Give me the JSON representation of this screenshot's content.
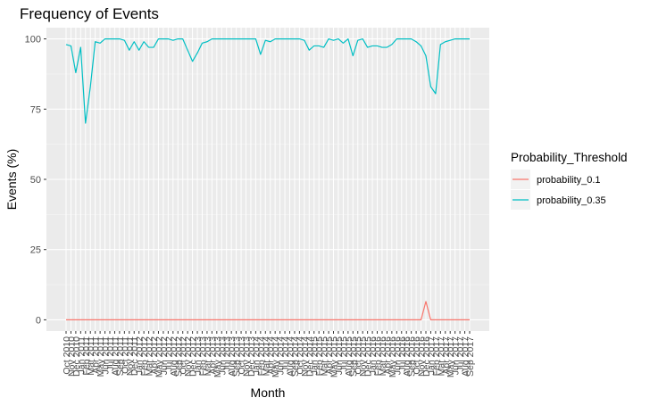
{
  "chart_data": {
    "type": "line",
    "title": "Frequency of Events",
    "xlabel": "Month",
    "ylabel": "Events (%)",
    "ylim": [
      -4,
      104
    ],
    "yticks": [
      0,
      25,
      50,
      75,
      100
    ],
    "grid": true,
    "legend_position": "right",
    "legend_title": "Probability_Threshold",
    "categories": [
      "Oct 2010",
      "Nov 2010",
      "Dec 2010",
      "Jan 2011",
      "Feb 2011",
      "Mar 2011",
      "Apr 2011",
      "May 2011",
      "Jun 2011",
      "Jul 2011",
      "Aug 2011",
      "Sep 2011",
      "Oct 2011",
      "Nov 2011",
      "Dec 2011",
      "Jan 2012",
      "Feb 2012",
      "Mar 2012",
      "Apr 2012",
      "May 2012",
      "Jun 2012",
      "Jul 2012",
      "Aug 2012",
      "Sep 2012",
      "Oct 2012",
      "Nov 2012",
      "Dec 2012",
      "Jan 2013",
      "Feb 2013",
      "Mar 2013",
      "Apr 2013",
      "May 2013",
      "Jun 2013",
      "Jul 2013",
      "Aug 2013",
      "Sep 2013",
      "Oct 2013",
      "Nov 2013",
      "Dec 2013",
      "Jan 2014",
      "Feb 2014",
      "Mar 2014",
      "Apr 2014",
      "May 2014",
      "Jun 2014",
      "Jul 2014",
      "Aug 2014",
      "Sep 2014",
      "Oct 2014",
      "Nov 2014",
      "Dec 2014",
      "Jan 2015",
      "Feb 2015",
      "Mar 2015",
      "Apr 2015",
      "May 2015",
      "Jun 2015",
      "Jul 2015",
      "Aug 2015",
      "Sep 2015",
      "Oct 2015",
      "Nov 2015",
      "Dec 2015",
      "Jan 2016",
      "Feb 2016",
      "Mar 2016",
      "Apr 2016",
      "May 2016",
      "Jun 2016",
      "Jul 2016",
      "Aug 2016",
      "Sep 2016",
      "Oct 2016",
      "Nov 2016",
      "Dec 2016",
      "Jan 2017",
      "Feb 2017",
      "Mar 2017",
      "Apr 2017",
      "May 2017",
      "Jun 2017",
      "Jul 2017",
      "Aug 2017",
      "Sep 2017"
    ],
    "series": [
      {
        "name": "probability_0.1",
        "color": "#F8766D",
        "values": [
          0,
          0,
          0,
          0,
          0,
          0,
          0,
          0,
          0,
          0,
          0,
          0,
          0,
          0,
          0,
          0,
          0,
          0,
          0,
          0,
          0,
          0,
          0,
          0,
          0,
          0,
          0,
          0,
          0,
          0,
          0,
          0,
          0,
          0,
          0,
          0,
          0,
          0,
          0,
          0,
          0,
          0,
          0,
          0,
          0,
          0,
          0,
          0,
          0,
          0,
          0,
          0,
          0,
          0,
          0,
          0,
          0,
          0,
          0,
          0,
          0,
          0,
          0,
          0,
          0,
          0,
          0,
          0,
          0,
          0,
          0,
          0,
          0,
          0,
          6.5,
          0,
          0,
          0,
          0,
          0,
          0,
          0,
          0,
          0
        ]
      },
      {
        "name": "probability_0.35",
        "color": "#00BFC4",
        "values": [
          98,
          97.5,
          88,
          97,
          70,
          83,
          99,
          98.5,
          100,
          100,
          100,
          100,
          99.5,
          96,
          99,
          96,
          99,
          97,
          97,
          100,
          100,
          100,
          99.5,
          100,
          100,
          96,
          92,
          95,
          98.5,
          99,
          100,
          100,
          100,
          100,
          100,
          100,
          100,
          100,
          100,
          100,
          94.5,
          99.5,
          99,
          100,
          100,
          100,
          100,
          100,
          100,
          99.5,
          96,
          97.5,
          97.5,
          97,
          100,
          99.5,
          100,
          98.5,
          100,
          94,
          99.5,
          100,
          97,
          97.5,
          97.5,
          97,
          97,
          98,
          100,
          100,
          100,
          100,
          99,
          97.5,
          94,
          83,
          80.5,
          98,
          99,
          99.5,
          100,
          100,
          100,
          100
        ]
      }
    ]
  }
}
